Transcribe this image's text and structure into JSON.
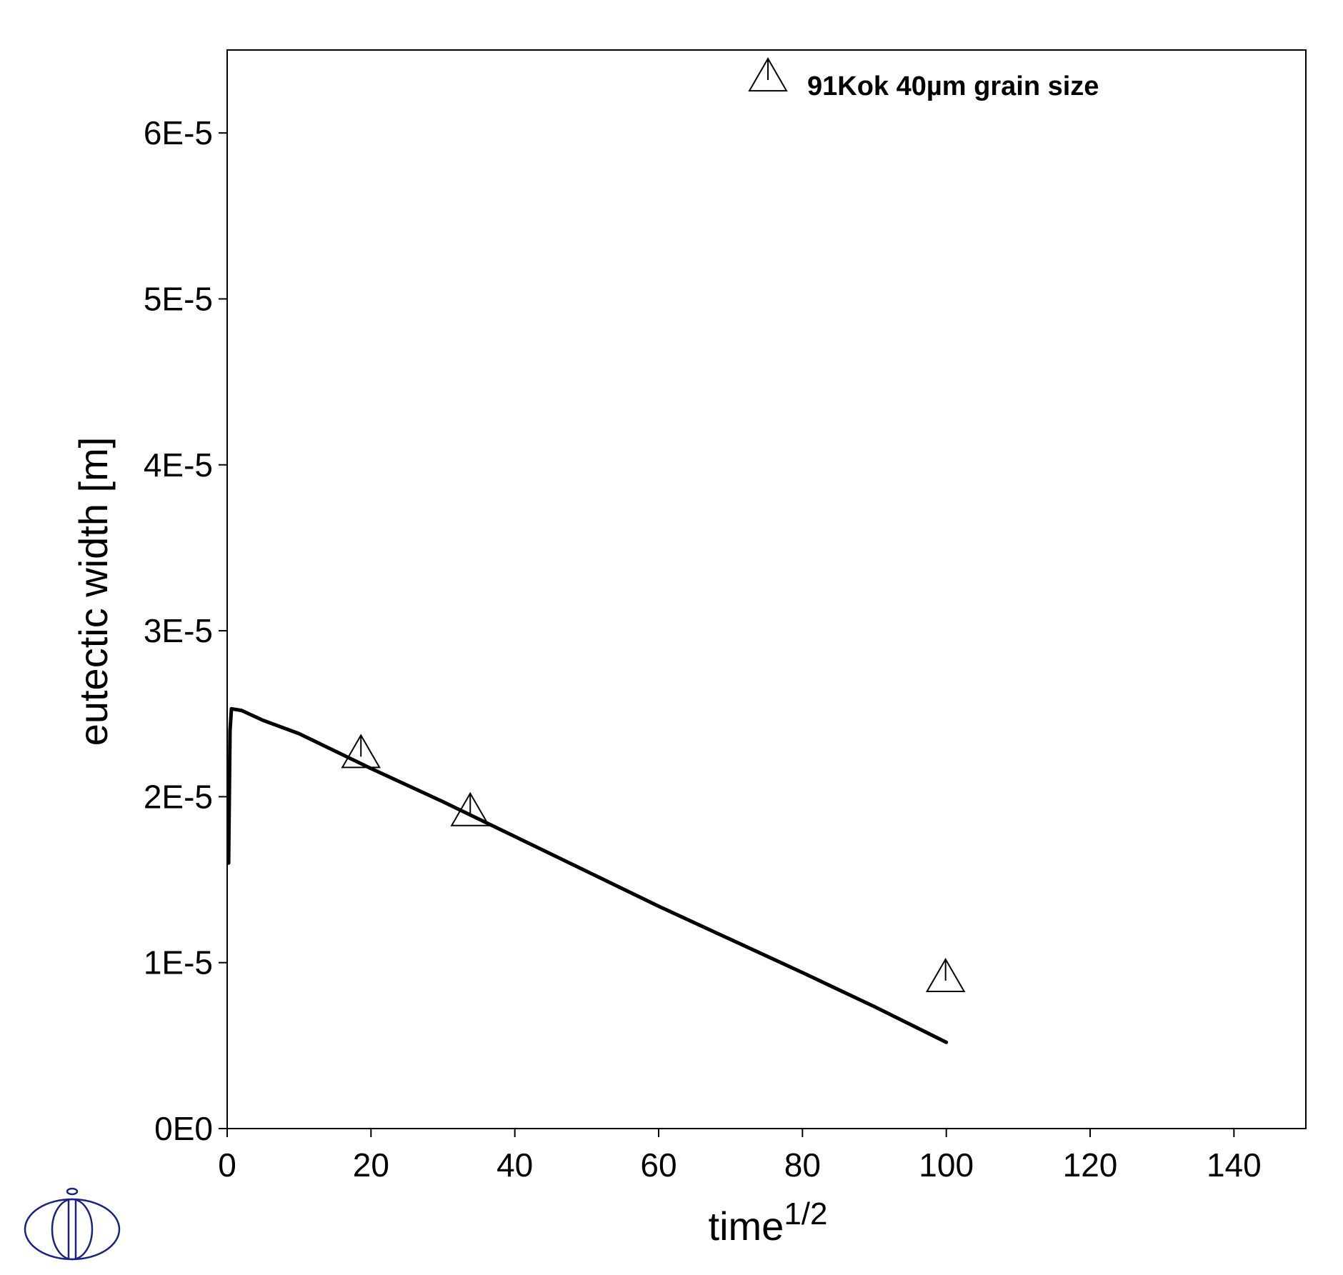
{
  "chart_data": {
    "type": "line",
    "xlabel": "time",
    "xlabel_superscript": "1/2",
    "ylabel": "eutectic width [m]",
    "xlim": [
      0,
      150
    ],
    "ylim": [
      0,
      6.5e-05
    ],
    "xticks": [
      0,
      20,
      40,
      60,
      80,
      100,
      120,
      140
    ],
    "xtick_labels": [
      "0",
      "20",
      "40",
      "60",
      "80",
      "100",
      "120",
      "140"
    ],
    "yticks": [
      0,
      1e-05,
      2e-05,
      3e-05,
      4e-05,
      5e-05,
      6e-05
    ],
    "ytick_labels": [
      "0E0",
      "1E-5",
      "2E-5",
      "3E-5",
      "4E-5",
      "5E-5",
      "6E-5"
    ],
    "grid": false,
    "legend_position": "top-right",
    "series": [
      {
        "style": "line",
        "color": "#000000",
        "points": [
          [
            0.2,
            1.6e-05
          ],
          [
            0.4,
            2.4e-05
          ],
          [
            0.6,
            2.53e-05
          ],
          [
            2,
            2.52e-05
          ],
          [
            5,
            2.46e-05
          ],
          [
            10,
            2.38e-05
          ],
          [
            20,
            2.17e-05
          ],
          [
            30,
            1.97e-05
          ],
          [
            40,
            1.76e-05
          ],
          [
            50,
            1.55e-05
          ],
          [
            60,
            1.34e-05
          ],
          [
            70,
            1.14e-05
          ],
          [
            80,
            9.4e-06
          ],
          [
            90,
            7.35e-06
          ],
          [
            100,
            5.2e-06
          ]
        ]
      },
      {
        "name": "91Kok 40µm grain size",
        "style": "marker",
        "marker": "triangle",
        "color": "#000000",
        "points": [
          [
            18.6,
            2.25e-05
          ],
          [
            33.8,
            1.9e-05
          ],
          [
            99.9,
            9e-06
          ]
        ]
      }
    ]
  }
}
